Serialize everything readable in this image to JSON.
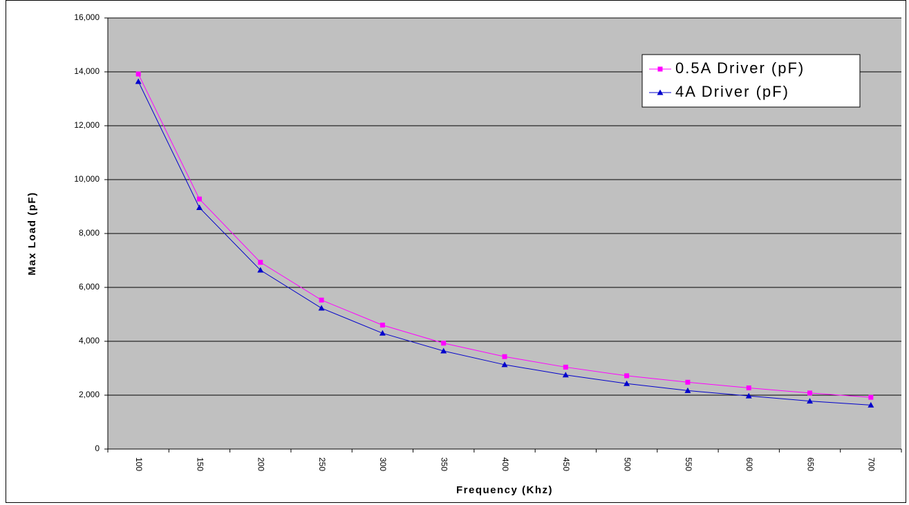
{
  "chart_data": {
    "type": "line",
    "title": "",
    "xlabel": "Frequency (Khz)",
    "ylabel": "Max Load (pF)",
    "categories": [
      "100",
      "150",
      "200",
      "250",
      "300",
      "350",
      "400",
      "450",
      "500",
      "550",
      "600",
      "650",
      "700"
    ],
    "ylim": [
      0,
      16000
    ],
    "yticks": [
      0,
      2000,
      4000,
      6000,
      8000,
      10000,
      12000,
      14000,
      16000
    ],
    "ytick_labels": [
      "0",
      "2,000",
      "4,000",
      "6,000",
      "8,000",
      "10,000",
      "12,000",
      "14,000",
      "16,000"
    ],
    "grid": true,
    "legend_position": "top-right",
    "plot_background": "#c0c0c0",
    "series": [
      {
        "name": "0.5A Driver (pF)",
        "color": "#ff00ff",
        "marker": "square",
        "values": [
          13920,
          9280,
          6930,
          5530,
          4600,
          3930,
          3430,
          3040,
          2720,
          2480,
          2270,
          2080,
          1920
        ]
      },
      {
        "name": "4A Driver (pF)",
        "color": "#0000cc",
        "marker": "triangle",
        "values": [
          13640,
          8960,
          6640,
          5230,
          4300,
          3640,
          3130,
          2750,
          2430,
          2170,
          1970,
          1780,
          1630
        ]
      }
    ]
  }
}
